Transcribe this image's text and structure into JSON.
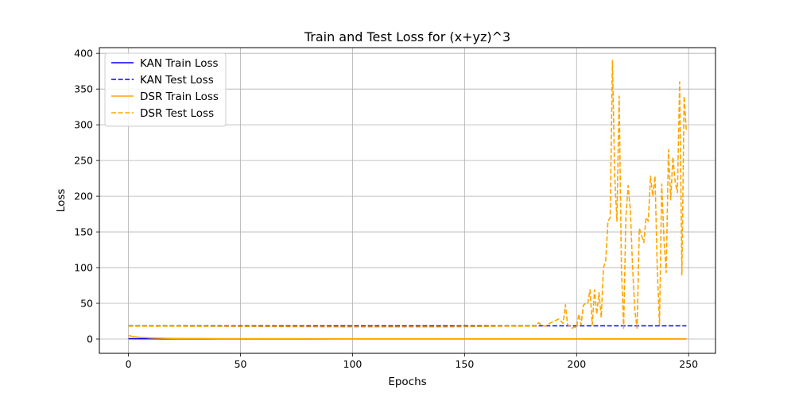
{
  "chart_data": {
    "type": "line",
    "title": "Train and Test Loss for (x+yz)^3",
    "xlabel": "Epochs",
    "ylabel": "Loss",
    "xlim": [
      -13,
      262
    ],
    "ylim": [
      -20,
      408
    ],
    "xticks": [
      0,
      50,
      100,
      150,
      200,
      250
    ],
    "yticks": [
      0,
      50,
      100,
      150,
      200,
      250,
      300,
      350,
      400
    ],
    "grid": true,
    "legend_position": "top-left",
    "series": [
      {
        "name": "KAN Train Loss",
        "color": "#0000ff",
        "dash": "solid",
        "points": [
          [
            0,
            0.5
          ],
          [
            10,
            0.3
          ],
          [
            50,
            0.2
          ],
          [
            249,
            0.2
          ]
        ]
      },
      {
        "name": "KAN Test Loss",
        "color": "#0000ff",
        "dash": "dashed",
        "points": [
          [
            0,
            18.5
          ],
          [
            249,
            18.5
          ]
        ]
      },
      {
        "name": "DSR Train Loss",
        "color": "#ffa500",
        "dash": "solid",
        "points": [
          [
            0,
            5
          ],
          [
            2,
            3.5
          ],
          [
            5,
            2.5
          ],
          [
            10,
            1.5
          ],
          [
            20,
            0.8
          ],
          [
            40,
            0.5
          ],
          [
            100,
            0.4
          ],
          [
            249,
            0.4
          ]
        ]
      },
      {
        "name": "DSR Test Loss",
        "color": "#ffa500",
        "dash": "dashed",
        "points": [
          [
            0,
            18
          ],
          [
            20,
            18
          ],
          [
            60,
            17.5
          ],
          [
            100,
            17
          ],
          [
            140,
            17
          ],
          [
            170,
            18
          ],
          [
            182,
            18
          ],
          [
            183,
            23
          ],
          [
            184,
            20
          ],
          [
            186,
            18
          ],
          [
            188,
            22
          ],
          [
            190,
            25
          ],
          [
            192,
            28
          ],
          [
            193,
            25
          ],
          [
            194,
            22
          ],
          [
            195,
            48
          ],
          [
            196,
            20
          ],
          [
            197,
            18
          ],
          [
            198,
            15
          ],
          [
            199,
            17
          ],
          [
            200,
            16
          ],
          [
            201,
            35
          ],
          [
            202,
            20
          ],
          [
            203,
            47
          ],
          [
            204,
            50
          ],
          [
            205,
            50
          ],
          [
            206,
            69
          ],
          [
            207,
            20
          ],
          [
            208,
            69
          ],
          [
            209,
            35
          ],
          [
            210,
            65
          ],
          [
            211,
            30
          ],
          [
            212,
            100
          ],
          [
            213,
            110
          ],
          [
            214,
            165
          ],
          [
            215,
            170
          ],
          [
            216,
            390
          ],
          [
            217,
            230
          ],
          [
            218,
            165
          ],
          [
            219,
            340
          ],
          [
            220,
            100
          ],
          [
            221,
            15
          ],
          [
            222,
            170
          ],
          [
            223,
            215
          ],
          [
            224,
            180
          ],
          [
            225,
            100
          ],
          [
            226,
            40
          ],
          [
            227,
            15
          ],
          [
            228,
            155
          ],
          [
            229,
            145
          ],
          [
            230,
            135
          ],
          [
            231,
            170
          ],
          [
            232,
            165
          ],
          [
            233,
            228
          ],
          [
            234,
            200
          ],
          [
            235,
            228
          ],
          [
            236,
            100
          ],
          [
            237,
            20
          ],
          [
            238,
            217
          ],
          [
            239,
            140
          ],
          [
            240,
            93
          ],
          [
            241,
            265
          ],
          [
            242,
            195
          ],
          [
            243,
            255
          ],
          [
            244,
            220
          ],
          [
            245,
            205
          ],
          [
            246,
            360
          ],
          [
            247,
            90
          ],
          [
            248,
            340
          ],
          [
            249,
            290
          ]
        ]
      }
    ]
  }
}
